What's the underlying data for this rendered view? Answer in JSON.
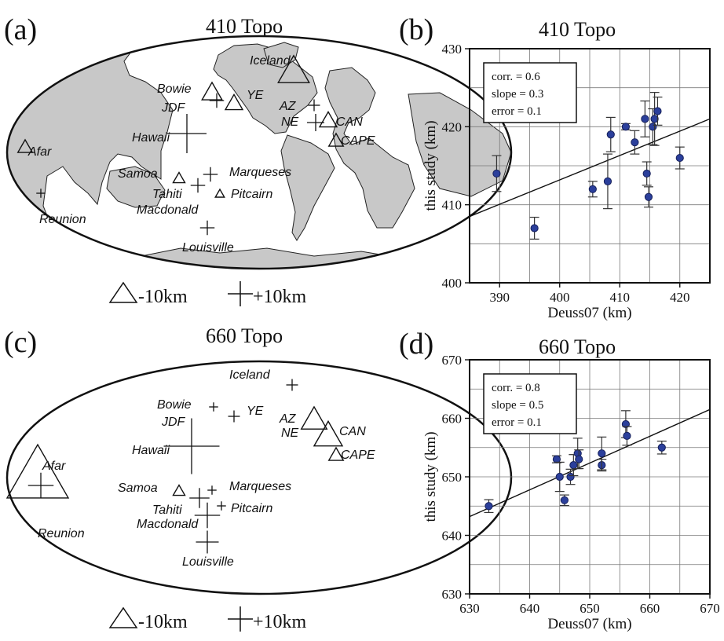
{
  "figure": {
    "panel_a": {
      "letter": "(a)",
      "title": "410 Topo"
    },
    "panel_b": {
      "letter": "(b)",
      "title": "410 Topo"
    },
    "panel_c": {
      "letter": "(c)",
      "title": "660 Topo"
    },
    "panel_d": {
      "letter": "(d)",
      "title": "660 Topo"
    },
    "legend": {
      "minus_label": "-10km",
      "plus_label": "+10km"
    }
  },
  "maps": [
    {
      "id": "a",
      "places": [
        {
          "name": "Iceland"
        },
        {
          "name": "Bowie"
        },
        {
          "name": "JDF"
        },
        {
          "name": "YE"
        },
        {
          "name": "AZ"
        },
        {
          "name": "NE"
        },
        {
          "name": "CAN"
        },
        {
          "name": "CAPE"
        },
        {
          "name": "Afar"
        },
        {
          "name": "Hawaii"
        },
        {
          "name": "Samoa"
        },
        {
          "name": "Marqueses"
        },
        {
          "name": "Tahiti"
        },
        {
          "name": "Pitcairn"
        },
        {
          "name": "Macdonald"
        },
        {
          "name": "Reunion"
        },
        {
          "name": "Louisville"
        }
      ],
      "markers": [
        {
          "type": "triangle",
          "size": 0.45
        },
        {
          "type": "cross",
          "size": 0.15
        },
        {
          "type": "triangle",
          "size": 0.25
        },
        {
          "type": "triangle",
          "size": 0.2
        },
        {
          "type": "cross",
          "size": 0.1
        },
        {
          "type": "cross",
          "size": 0.2
        },
        {
          "type": "triangle",
          "size": 0.2
        },
        {
          "type": "triangle",
          "size": 0.15
        },
        {
          "type": "triangle",
          "size": 0.15
        },
        {
          "type": "cross",
          "size": 0.6
        },
        {
          "type": "triangle",
          "size": 0.1
        },
        {
          "type": "cross",
          "size": 0.15
        },
        {
          "type": "cross",
          "size": 0.15
        },
        {
          "type": "triangle",
          "size": 0.05
        },
        {
          "type": "cross",
          "size": 0.05
        },
        {
          "type": "cross",
          "size": 0.15
        }
      ]
    },
    {
      "id": "c",
      "places": [
        {
          "name": "Iceland"
        },
        {
          "name": "Bowie"
        },
        {
          "name": "JDF"
        },
        {
          "name": "YE"
        },
        {
          "name": "AZ"
        },
        {
          "name": "NE"
        },
        {
          "name": "CAN"
        },
        {
          "name": "CAPE"
        },
        {
          "name": "Afar"
        },
        {
          "name": "Hawaii"
        },
        {
          "name": "Samoa"
        },
        {
          "name": "Marqueses"
        },
        {
          "name": "Tahiti"
        },
        {
          "name": "Pitcairn"
        },
        {
          "name": "Macdonald"
        },
        {
          "name": "Reunion"
        },
        {
          "name": "Louisville"
        }
      ],
      "markers": [
        {
          "type": "cross",
          "size": 0.1
        },
        {
          "type": "cross",
          "size": 0.05
        },
        {
          "type": "cross",
          "size": 0.1
        },
        {
          "type": "triangle",
          "size": 0.35
        },
        {
          "type": "triangle",
          "size": 0.4
        },
        {
          "type": "triangle",
          "size": 0.15
        },
        {
          "type": "triangle",
          "size": 1.0
        },
        {
          "type": "cross",
          "size": 0.9
        },
        {
          "type": "cross",
          "size": 0.35
        },
        {
          "type": "triangle",
          "size": 0.1
        },
        {
          "type": "cross",
          "size": 0.25
        },
        {
          "type": "cross",
          "size": 0.05
        },
        {
          "type": "cross",
          "size": 0.05
        },
        {
          "type": "cross",
          "size": 0.35
        },
        {
          "type": "cross",
          "size": 0.3
        }
      ]
    }
  ],
  "chart_data": [
    {
      "id": "b",
      "type": "scatter",
      "title": "410 Topo",
      "xlabel": "Deuss07 (km)",
      "ylabel": "this study (km)",
      "xlim": [
        385,
        425
      ],
      "ylim": [
        400,
        430
      ],
      "xticks": [
        390,
        400,
        410,
        420
      ],
      "yticks": [
        400,
        410,
        420,
        430
      ],
      "grid": true,
      "stats": [
        "corr. = 0.6",
        "slope = 0.3",
        "error = 0.1"
      ],
      "fit_line": [
        [
          385,
          408.5
        ],
        [
          425,
          421
        ]
      ],
      "points": [
        {
          "x": 389.5,
          "y": 414,
          "err": 2.3
        },
        {
          "x": 395.8,
          "y": 407,
          "err": 1.4
        },
        {
          "x": 405.5,
          "y": 412,
          "err": 1
        },
        {
          "x": 408,
          "y": 413,
          "err": 3.5
        },
        {
          "x": 408.5,
          "y": 419,
          "err": 2.2
        },
        {
          "x": 411,
          "y": 420,
          "err": 0.4
        },
        {
          "x": 412.5,
          "y": 418,
          "err": 1.5
        },
        {
          "x": 414.2,
          "y": 421,
          "err": 2.3
        },
        {
          "x": 414.5,
          "y": 414,
          "err": 1.5
        },
        {
          "x": 414.8,
          "y": 411,
          "err": 1.3
        },
        {
          "x": 415.5,
          "y": 420,
          "err": 2.3
        },
        {
          "x": 415.8,
          "y": 421,
          "err": 3.4
        },
        {
          "x": 416.3,
          "y": 422,
          "err": 1.8
        },
        {
          "x": 420,
          "y": 416,
          "err": 1.4
        }
      ]
    },
    {
      "id": "d",
      "type": "scatter",
      "title": "660 Topo",
      "xlabel": "Deuss07 (km)",
      "ylabel": "this study (km)",
      "xlim": [
        630,
        670
      ],
      "ylim": [
        630,
        670
      ],
      "xticks": [
        630,
        640,
        650,
        660,
        670
      ],
      "yticks": [
        630,
        640,
        650,
        660,
        670
      ],
      "grid": true,
      "stats": [
        "corr. = 0.8",
        "slope = 0.5",
        "error = 0.1"
      ],
      "fit_line": [
        [
          630,
          643.2
        ],
        [
          670,
          661.5
        ]
      ],
      "points": [
        {
          "x": 633.2,
          "y": 645,
          "err": 1.1
        },
        {
          "x": 644.5,
          "y": 653,
          "err": 0.6
        },
        {
          "x": 645,
          "y": 650,
          "err": 2.5
        },
        {
          "x": 645.8,
          "y": 646,
          "err": 0.9
        },
        {
          "x": 646.8,
          "y": 650,
          "err": 1.3
        },
        {
          "x": 647.3,
          "y": 652,
          "err": 1.8
        },
        {
          "x": 648,
          "y": 654,
          "err": 2.6
        },
        {
          "x": 648.2,
          "y": 653,
          "err": 1.6
        },
        {
          "x": 652,
          "y": 652,
          "err": 1
        },
        {
          "x": 652,
          "y": 654,
          "err": 2.8
        },
        {
          "x": 656,
          "y": 659,
          "err": 2.3
        },
        {
          "x": 656.2,
          "y": 657,
          "err": 1.6
        },
        {
          "x": 662,
          "y": 655,
          "err": 1.1
        }
      ]
    }
  ],
  "colors": {
    "land": "#c8c8c8",
    "ocean": "#ffffff",
    "outline": "#111111",
    "grid": "#7a7a7a",
    "point_fill": "#2b3f9b",
    "point_stroke": "#16205a"
  }
}
